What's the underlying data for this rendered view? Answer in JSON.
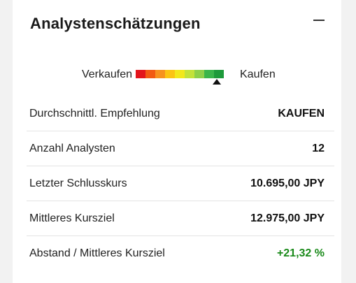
{
  "widget": {
    "title": "Analystenschätzungen",
    "collapse_icon": "minus-icon"
  },
  "rating": {
    "sell_label": "Verkaufen",
    "buy_label": "Kaufen",
    "scale_colors": [
      "#e3141b",
      "#f25a12",
      "#f7921e",
      "#fbc413",
      "#f2e81b",
      "#c3e23a",
      "#8dd049",
      "#3ab54a",
      "#1d9a3a"
    ],
    "marker_position_fraction": 0.92,
    "marker_icon": "triangle-up-icon"
  },
  "rows": [
    {
      "label": "Durchschnittl. Empfehlung",
      "value": "KAUFEN"
    },
    {
      "label": "Anzahl Analysten",
      "value": "12"
    },
    {
      "label": "Letzter Schlusskurs",
      "value": "10.695,00 JPY"
    },
    {
      "label": "Mittleres Kursziel",
      "value": "12.975,00 JPY"
    },
    {
      "label": "Abstand / Mittleres Kursziel",
      "value": "+21,32 %",
      "value_color": "#1a8a1a"
    }
  ]
}
